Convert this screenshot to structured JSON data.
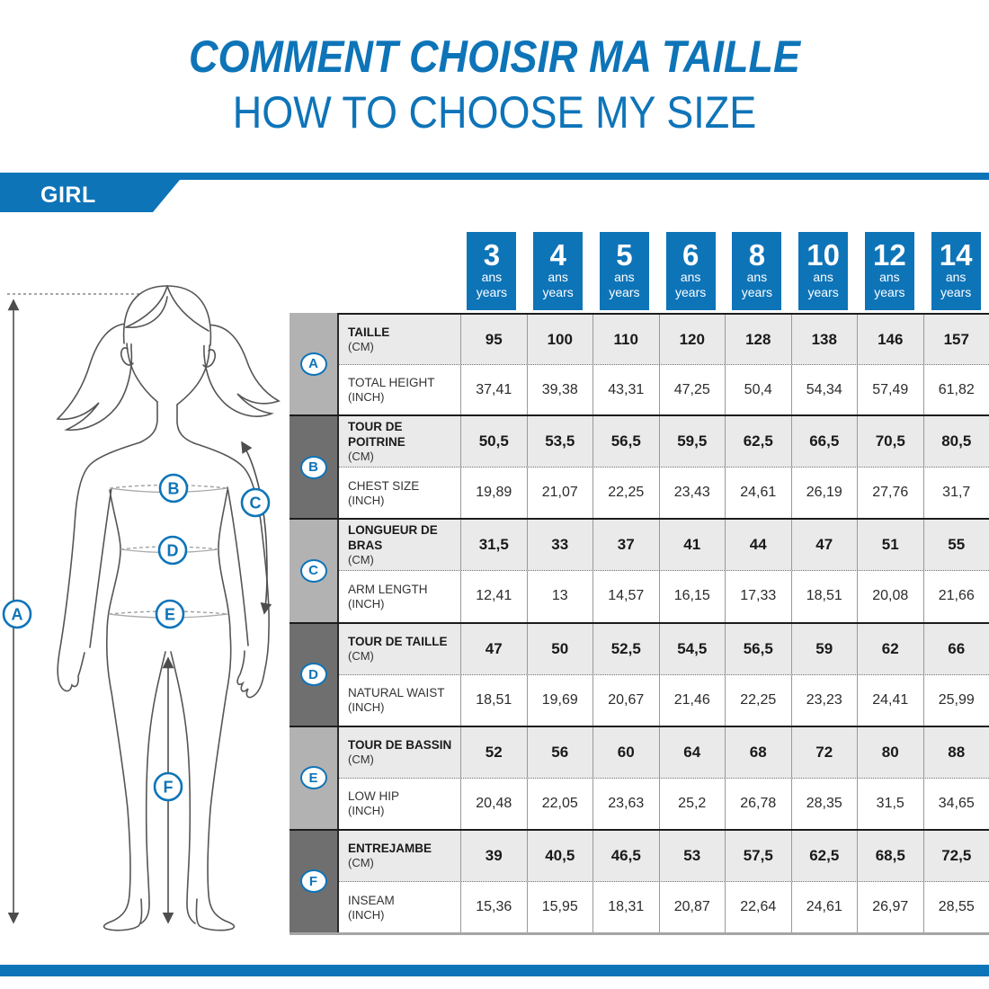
{
  "title": {
    "fr": "COMMENT CHOISIR MA TAILLE",
    "en": "HOW TO CHOOSE MY SIZE"
  },
  "banner": {
    "label": "GIRL"
  },
  "colors": {
    "accent_blue": "#0e74b8",
    "letter_col_light": "#b2b2b2",
    "letter_col_dark": "#6f6f6f",
    "cm_row_bg": "#eaeaea"
  },
  "ages": [
    {
      "num": "3",
      "fr": "ans",
      "en": "years"
    },
    {
      "num": "4",
      "fr": "ans",
      "en": "years"
    },
    {
      "num": "5",
      "fr": "ans",
      "en": "years"
    },
    {
      "num": "6",
      "fr": "ans",
      "en": "years"
    },
    {
      "num": "8",
      "fr": "ans",
      "en": "years"
    },
    {
      "num": "10",
      "fr": "ans",
      "en": "years"
    },
    {
      "num": "12",
      "fr": "ans",
      "en": "years"
    },
    {
      "num": "14",
      "fr": "ans",
      "en": "years"
    }
  ],
  "rows": [
    {
      "letter": "A",
      "label_fr": "TAILLE",
      "unit_fr": "(CM)",
      "label_en": "TOTAL HEIGHT",
      "unit_en": "(INCH)",
      "cm": [
        "95",
        "100",
        "110",
        "120",
        "128",
        "138",
        "146",
        "157"
      ],
      "inch": [
        "37,41",
        "39,38",
        "43,31",
        "47,25",
        "50,4",
        "54,34",
        "57,49",
        "61,82"
      ]
    },
    {
      "letter": "B",
      "label_fr": "TOUR DE POITRINE",
      "unit_fr": "(CM)",
      "label_en": "CHEST SIZE",
      "unit_en": "(INCH)",
      "cm": [
        "50,5",
        "53,5",
        "56,5",
        "59,5",
        "62,5",
        "66,5",
        "70,5",
        "80,5"
      ],
      "inch": [
        "19,89",
        "21,07",
        "22,25",
        "23,43",
        "24,61",
        "26,19",
        "27,76",
        "31,7"
      ]
    },
    {
      "letter": "C",
      "label_fr": "LONGUEUR DE BRAS",
      "unit_fr": "(CM)",
      "label_en": "ARM LENGTH",
      "unit_en": "(INCH)",
      "cm": [
        "31,5",
        "33",
        "37",
        "41",
        "44",
        "47",
        "51",
        "55"
      ],
      "inch": [
        "12,41",
        "13",
        "14,57",
        "16,15",
        "17,33",
        "18,51",
        "20,08",
        "21,66"
      ]
    },
    {
      "letter": "D",
      "label_fr": "TOUR DE TAILLE",
      "unit_fr": "(CM)",
      "label_en": "NATURAL WAIST",
      "unit_en": "(INCH)",
      "cm": [
        "47",
        "50",
        "52,5",
        "54,5",
        "56,5",
        "59",
        "62",
        "66"
      ],
      "inch": [
        "18,51",
        "19,69",
        "20,67",
        "21,46",
        "22,25",
        "23,23",
        "24,41",
        "25,99"
      ]
    },
    {
      "letter": "E",
      "label_fr": "TOUR DE BASSIN",
      "unit_fr": "(CM)",
      "label_en": "LOW HIP",
      "unit_en": "(INCH)",
      "cm": [
        "52",
        "56",
        "60",
        "64",
        "68",
        "72",
        "80",
        "88"
      ],
      "inch": [
        "20,48",
        "22,05",
        "23,63",
        "25,2",
        "26,78",
        "28,35",
        "31,5",
        "34,65"
      ]
    },
    {
      "letter": "F",
      "label_fr": "ENTREJAMBE",
      "unit_fr": "(CM)",
      "label_en": "INSEAM",
      "unit_en": "(INCH)",
      "cm": [
        "39",
        "40,5",
        "46,5",
        "53",
        "57,5",
        "62,5",
        "68,5",
        "72,5"
      ],
      "inch": [
        "15,36",
        "15,95",
        "18,31",
        "20,87",
        "22,64",
        "24,61",
        "26,97",
        "28,55"
      ]
    }
  ],
  "figure": {
    "markers": [
      {
        "letter": "A"
      },
      {
        "letter": "B"
      },
      {
        "letter": "C"
      },
      {
        "letter": "D"
      },
      {
        "letter": "E"
      },
      {
        "letter": "F"
      }
    ]
  }
}
